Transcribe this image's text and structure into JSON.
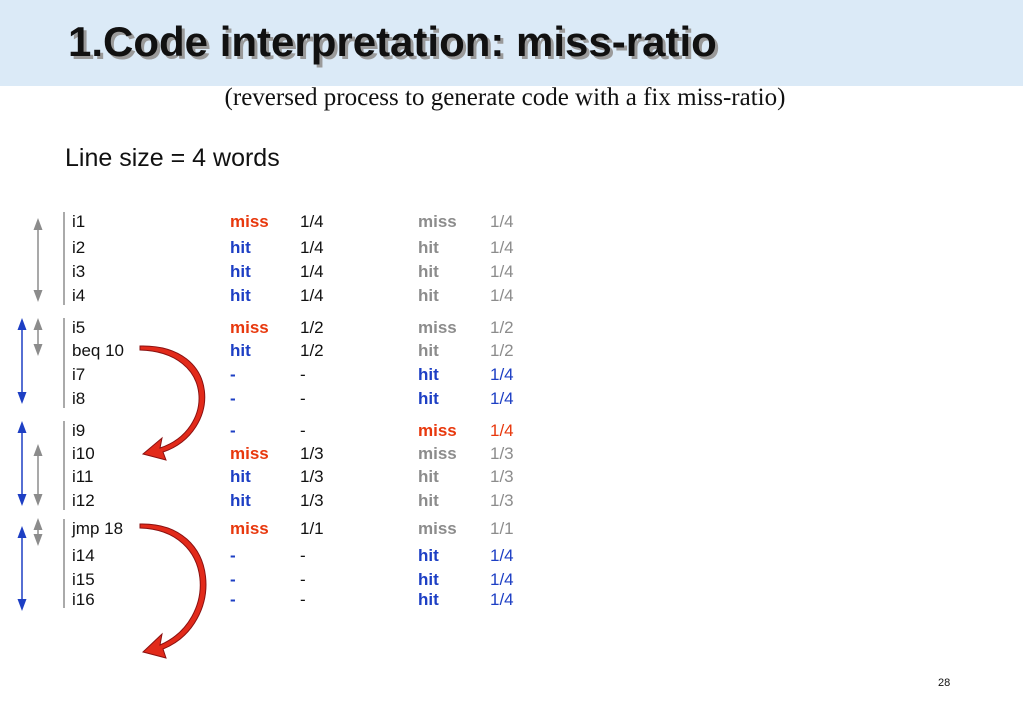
{
  "header": {
    "title": "1.Code interpretation: miss-ratio",
    "subtitle": "(reversed process to generate code with a fix miss-ratio)"
  },
  "line_size": "Line size = 4 words",
  "rows": [
    {
      "instr": "i1",
      "s1": "miss",
      "r1": "1/4",
      "s2": "miss",
      "r2": "1/4",
      "c2": "#8c8c8c"
    },
    {
      "instr": "i2",
      "s1": "hit",
      "r1": "1/4",
      "s2": "hit",
      "r2": "1/4",
      "c2": "#8c8c8c"
    },
    {
      "instr": "i3",
      "s1": "hit",
      "r1": "1/4",
      "s2": "hit",
      "r2": "1/4",
      "c2": "#8c8c8c"
    },
    {
      "instr": "i4",
      "s1": "hit",
      "r1": "1/4",
      "s2": "hit",
      "r2": "1/4",
      "c2": "#8c8c8c"
    },
    {
      "instr": "i5",
      "s1": "miss",
      "r1": "1/2",
      "s2": "miss",
      "r2": "1/2",
      "c2": "#8c8c8c"
    },
    {
      "instr": "beq 10",
      "s1": "hit",
      "r1": "1/2",
      "s2": "hit",
      "r2": "1/2",
      "c2": "#8c8c8c"
    },
    {
      "instr": "i7",
      "s1": "-",
      "r1": "-",
      "s2": "hit",
      "r2": "1/4",
      "c2": "#1d3fc4"
    },
    {
      "instr": "i8",
      "s1": "-",
      "r1": "-",
      "s2": "hit",
      "r2": "1/4",
      "c2": "#1d3fc4"
    },
    {
      "instr": "i9",
      "s1": "-",
      "r1": "-",
      "s2": "miss",
      "r2": "1/4",
      "c2": "#e8380d"
    },
    {
      "instr": "i10",
      "s1": "miss",
      "r1": "1/3",
      "s2": "miss",
      "r2": "1/3",
      "c2": "#8c8c8c"
    },
    {
      "instr": "i11",
      "s1": "hit",
      "r1": "1/3",
      "s2": "hit",
      "r2": "1/3",
      "c2": "#8c8c8c"
    },
    {
      "instr": "i12",
      "s1": "hit",
      "r1": "1/3",
      "s2": "hit",
      "r2": "1/3",
      "c2": "#8c8c8c"
    },
    {
      "instr": "jmp 18",
      "s1": "miss",
      "r1": "1/1",
      "s2": "miss",
      "r2": "1/1",
      "c2": "#8c8c8c"
    },
    {
      "instr": "i14",
      "s1": "-",
      "r1": "-",
      "s2": "hit",
      "r2": "1/4",
      "c2": "#1d3fc4"
    },
    {
      "instr": "i15",
      "s1": "-",
      "r1": "-",
      "s2": "hit",
      "r2": "1/4",
      "c2": "#1d3fc4"
    },
    {
      "instr": "i16",
      "s1": "-",
      "r1": "-",
      "s2": "hit",
      "r2": "1/4",
      "c2": "#1d3fc4"
    }
  ],
  "page_number": "28"
}
